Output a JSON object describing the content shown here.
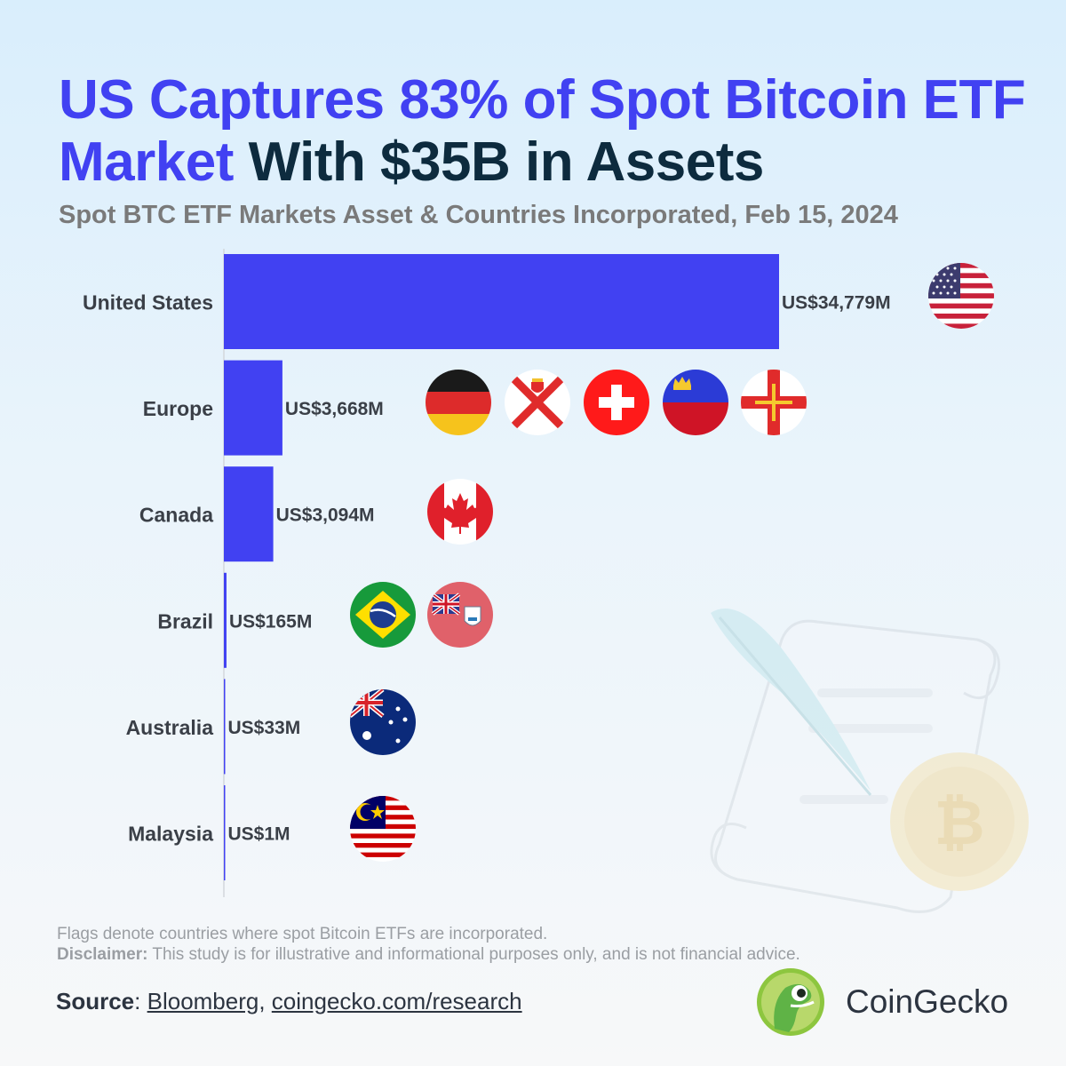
{
  "title": {
    "accent": "US Captures 83% of Spot Bitcoin ETF Market",
    "rest": "With $35B in Assets"
  },
  "subtitle": "Spot BTC ETF Markets Asset & Countries Incorporated, Feb 15, 2024",
  "chart_data": {
    "type": "bar",
    "orientation": "horizontal",
    "categories": [
      "United States",
      "Europe",
      "Canada",
      "Brazil",
      "Australia",
      "Malaysia"
    ],
    "values": [
      34779,
      3668,
      3094,
      165,
      33,
      1
    ],
    "value_labels": [
      "US$34,779M",
      "US$3,668M",
      "US$3,094M",
      "US$165M",
      "US$33M",
      "US$1M"
    ],
    "unit": "US$ millions",
    "xlim": [
      0,
      34779
    ],
    "bar_color": "#4141f2",
    "label_color": "#3a3f47",
    "flags": [
      [
        "us-flag"
      ],
      [
        "germany-flag",
        "jersey-flag",
        "switzerland-flag",
        "liechtenstein-flag",
        "guernsey-flag"
      ],
      [
        "canada-flag"
      ],
      [
        "brazil-flag",
        "bermuda-flag"
      ],
      [
        "australia-flag"
      ],
      [
        "malaysia-flag"
      ]
    ]
  },
  "footnote": {
    "line1": "Flags denote countries where spot Bitcoin ETFs are incorporated.",
    "disclaimer_label": "Disclaimer:",
    "disclaimer_text": " This study is for illustrative and informational purposes only, and is not financial advice."
  },
  "source": {
    "label": "Source",
    "sep": ": ",
    "link1": "Bloomberg",
    "comma": ", ",
    "link2": "coingecko.com/research"
  },
  "brand": {
    "name": "CoinGecko"
  },
  "colors": {
    "accent": "#4141f2",
    "title_dark": "#0d2b3e",
    "subtitle": "#7a7a7a",
    "footnote": "#9a9ea3"
  }
}
